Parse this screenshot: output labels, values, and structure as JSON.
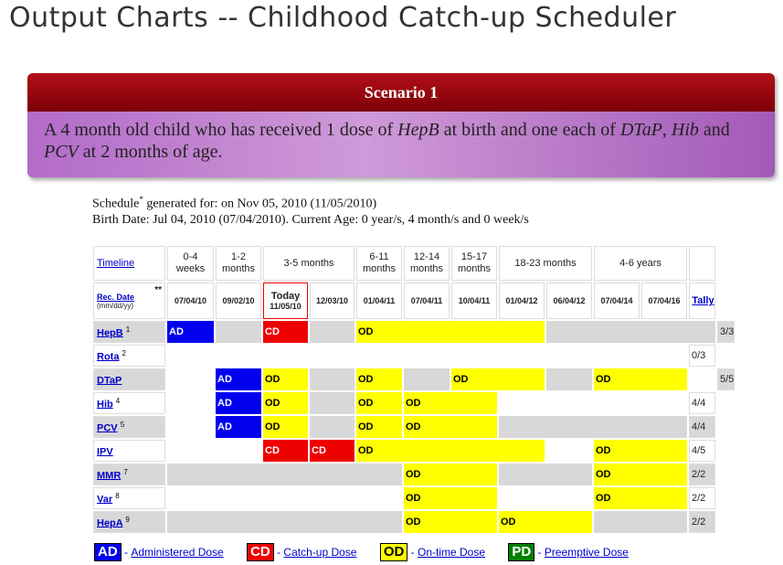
{
  "page": {
    "title": "Output Charts -- Childhood Catch-up Scheduler"
  },
  "scenario": {
    "title": "Scenario 1",
    "desc": {
      "t1": "A 4 month old child who has received 1 dose of ",
      "v1": "HepB",
      "t2": " at birth and one each of ",
      "v2": "DTaP",
      "t3": ", ",
      "v3": "Hib",
      "t4": " and ",
      "v4": "PCV",
      "t5": " at 2 months of age."
    }
  },
  "schedule": {
    "generated_label": "Schedule",
    "generated_star": "*",
    "generated_text": " generated for: on Nov 05, 2010 (11/05/2010)",
    "birth_line": "Birth Date: Jul 04, 2010 (07/04/2010). Current Age: 0 year/s, 4 month/s and 0 week/s"
  },
  "table": {
    "timeline_label": "Timeline",
    "rec_date_label": "Rec. Date",
    "rec_date_format": "(mm/dd/yy)",
    "rec_date_stars": "**",
    "tally_label": "Tally",
    "today_label": "Today",
    "periods": [
      {
        "label": "0-4 weeks"
      },
      {
        "label": "1-2 months"
      },
      {
        "label": "3-5 months"
      },
      {
        "label": "6-11 months"
      },
      {
        "label": "12-14 months"
      },
      {
        "label": "15-17 months"
      },
      {
        "label": "18-23 months"
      },
      {
        "label": "4-6 years"
      }
    ],
    "dates": [
      "07/04/10",
      "09/02/10",
      "11/05/10",
      "12/03/10",
      "01/04/11",
      "07/04/11",
      "10/04/11",
      "01/04/12",
      "06/04/12",
      "07/04/14",
      "07/04/16"
    ],
    "rows": [
      {
        "name": "HepB",
        "sup": "1",
        "tally": "3/3"
      },
      {
        "name": "Rota",
        "sup": "2",
        "tally": "0/3"
      },
      {
        "name": "DTaP",
        "sup": "",
        "tally": "5/5"
      },
      {
        "name": "Hib",
        "sup": "4",
        "tally": "4/4"
      },
      {
        "name": "PCV",
        "sup": "5",
        "tally": "4/4"
      },
      {
        "name": "IPV",
        "sup": "",
        "tally": "4/5"
      },
      {
        "name": "MMR",
        "sup": "7",
        "tally": "2/2"
      },
      {
        "name": "Var",
        "sup": "8",
        "tally": "2/2"
      },
      {
        "name": "HepA",
        "sup": "9",
        "tally": "2/2"
      }
    ],
    "dose_codes": {
      "ad": "AD",
      "cd": "CD",
      "od": "OD"
    }
  },
  "legend": {
    "items": [
      {
        "code": "AD",
        "label": "Administered Dose",
        "color": "#0000ee"
      },
      {
        "code": "CD",
        "label": "Catch-up Dose",
        "color": "#ee0000"
      },
      {
        "code": "OD",
        "label": "On-time Dose",
        "color": "#ffff00"
      },
      {
        "code": "PD",
        "label": "Preemptive Dose",
        "color": "#008000"
      }
    ]
  }
}
